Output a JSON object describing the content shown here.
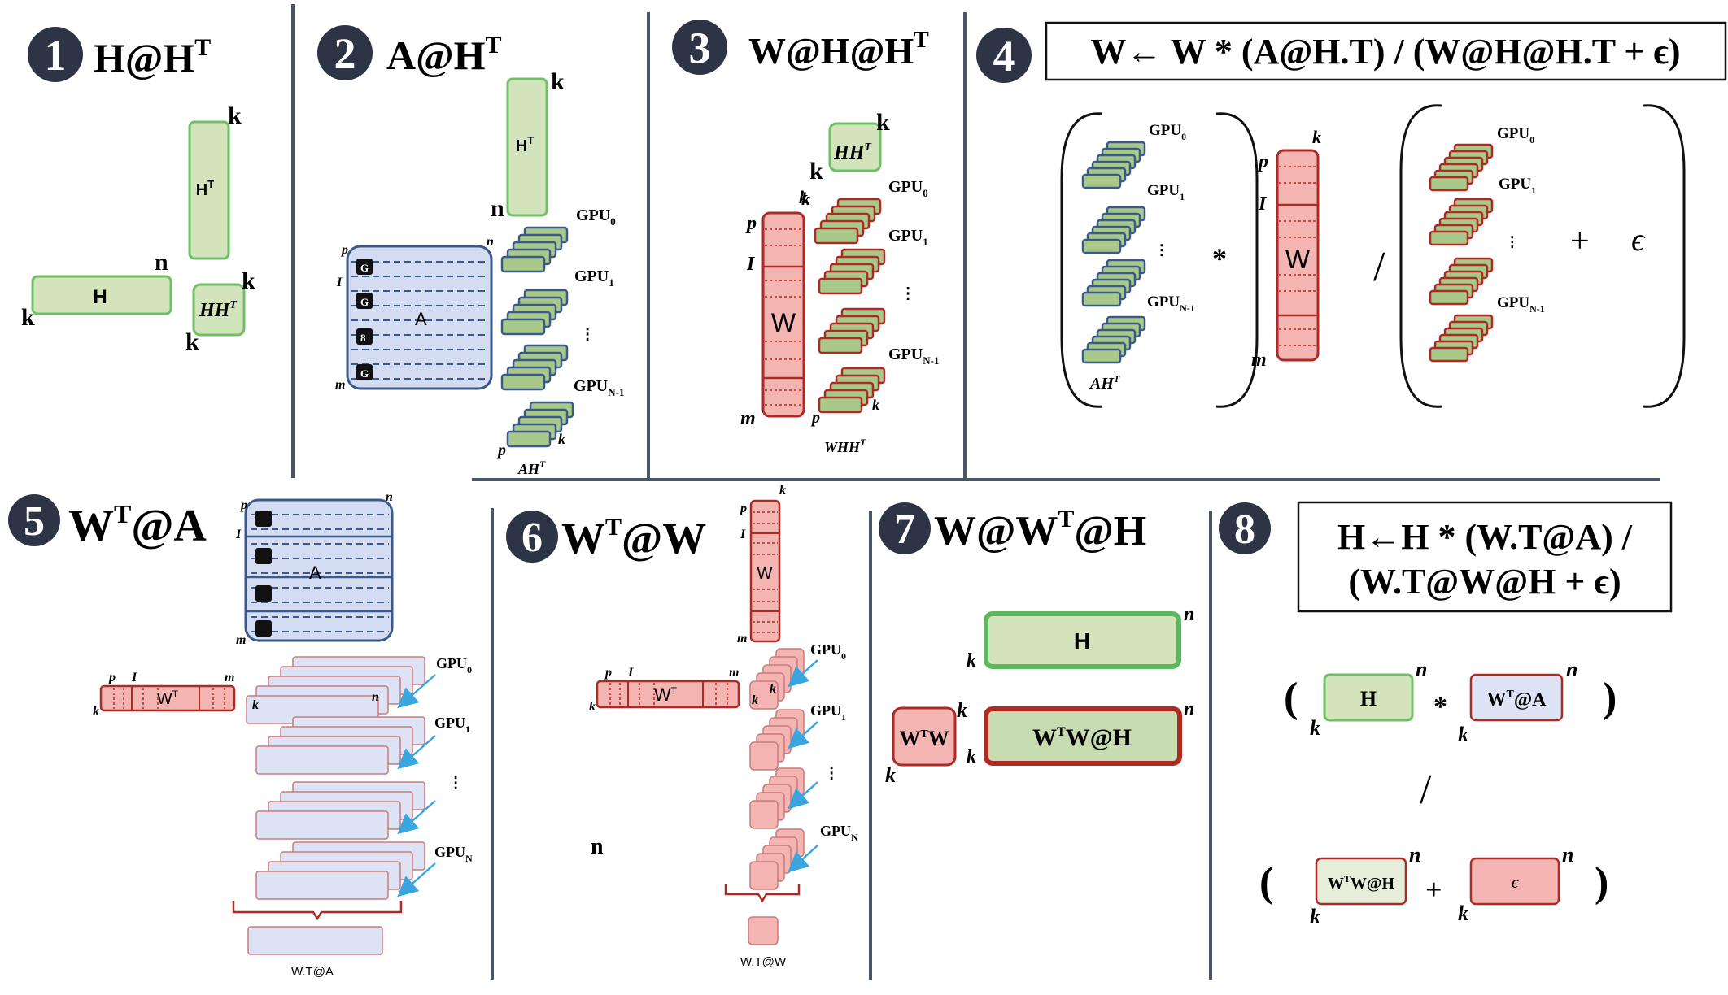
{
  "colors": {
    "divider": "#4a5568",
    "badge_fill": "#2d3446",
    "green_fill": "#d3e4bc",
    "green_stroke": "#6fbf66",
    "gpu_green_fill": "#a8c98a",
    "blue_stroke": "#3b5a8c",
    "blue_fill": "#d4dcf2",
    "red_stroke": "#b02a24",
    "red_fill": "#f4b5b2",
    "pink_fill": "#f7c7c9",
    "lavender_fill": "#dde3f5",
    "arrow": "#3aa6e0"
  },
  "panels": [
    {
      "number": "1",
      "label": "H@H",
      "sup": "T"
    },
    {
      "number": "2",
      "label": "A@H",
      "sup": "T"
    },
    {
      "number": "3",
      "label": "W@H@H",
      "sup": "T"
    },
    {
      "number": "4",
      "formula": "W← W * (A@H.T) / (W@H@H.T + ϵ)"
    },
    {
      "number": "5",
      "label_pre": "W",
      "sup": "T",
      "label_post": "@A"
    },
    {
      "number": "6",
      "label_pre": "W",
      "sup": "T",
      "label_post": "@W"
    },
    {
      "number": "7",
      "label_pre": "W@W",
      "sup": "T",
      "label_post": "@H"
    },
    {
      "number": "8",
      "formula_line1": "H←H * (W.T@A) /",
      "formula_line2": "(W.T@W@H + ϵ)"
    }
  ],
  "matrix_labels": {
    "H": "H",
    "HT": "H",
    "HHT": "HH",
    "A": "A",
    "W": "W",
    "WT": "W",
    "WTW": "W",
    "WTW_sub": "W",
    "WTW_at_H": "W",
    "WTW_at_H_post": "W@H",
    "WT_at_A": "W",
    "WT_at_A_post": "@A",
    "epsilon": "ϵ",
    "AHT": "AH",
    "WHHT": "WHH",
    "sup_T": "T",
    "result_A": "W.T@A",
    "result_W": "W.T@W"
  },
  "dims": {
    "k": "k",
    "n": "n",
    "m": "m",
    "p": "p",
    "I": "I"
  },
  "gpu_labels": {
    "gpu": "GPU",
    "sub0": "0",
    "sub1": "1",
    "subN1": "N-1",
    "subN": "N"
  },
  "chip_labels": [
    "G",
    "G",
    "8",
    "G"
  ],
  "operators": {
    "times": "*",
    "divide": "/",
    "plus": "+",
    "lparen": "(",
    "rparen": ")",
    "epsilon": "ϵ",
    "dots": "⁝"
  }
}
